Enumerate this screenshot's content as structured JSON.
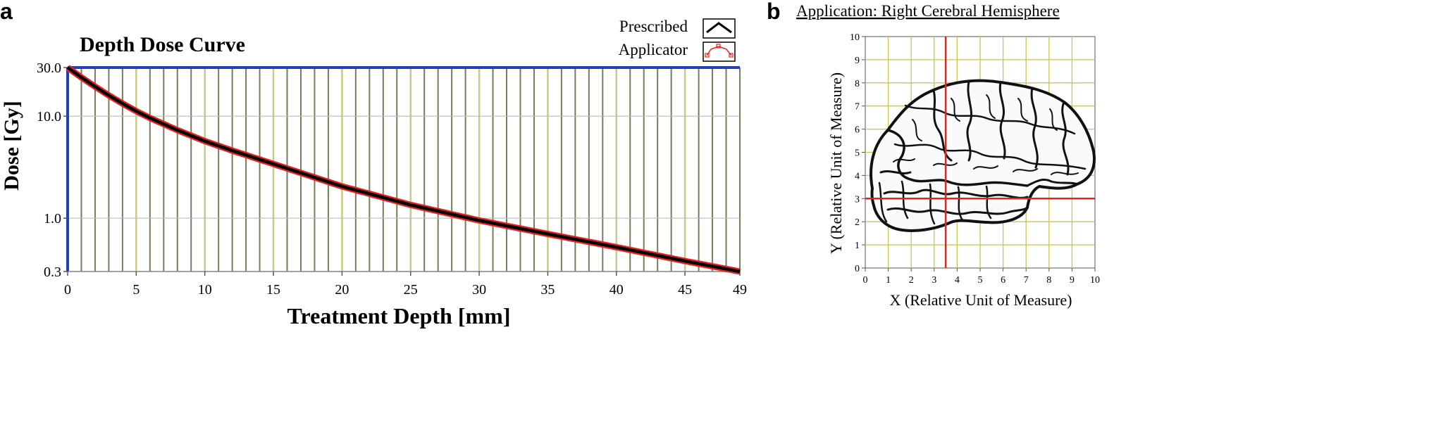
{
  "panel_labels": {
    "a": "a",
    "b": "b"
  },
  "chart_data": [
    {
      "panel": "a",
      "type": "line",
      "title": "Depth Dose Curve",
      "xlabel": "Treatment Depth [mm]",
      "ylabel": "Dose [Gy]",
      "xlim": [
        0,
        49
      ],
      "ylim": [
        0.3,
        30.0
      ],
      "y_scale": "log",
      "x_ticks": [
        "0",
        "5",
        "10",
        "15",
        "20",
        "25",
        "30",
        "35",
        "40",
        "45",
        "49"
      ],
      "y_ticks": [
        "0.3",
        "1.0",
        "10.0",
        "30.0"
      ],
      "grid": true,
      "legend": {
        "position": "top-right",
        "entries": [
          {
            "label": "Prescribed",
            "color": "#000000"
          },
          {
            "label": "Applicator",
            "color": "#e8231c"
          }
        ]
      },
      "series": [
        {
          "name": "Prescribed",
          "color": "#000000",
          "x": [
            0,
            1,
            2,
            3,
            4,
            5,
            6,
            8,
            10,
            12,
            15,
            20,
            25,
            30,
            35,
            40,
            45,
            49
          ],
          "y": [
            30.0,
            24.0,
            19.5,
            16.0,
            13.3,
            11.2,
            9.6,
            7.3,
            5.7,
            4.6,
            3.4,
            2.05,
            1.35,
            0.95,
            0.7,
            0.52,
            0.38,
            0.3
          ]
        },
        {
          "name": "Applicator",
          "color": "#e8231c",
          "x": [
            0,
            1,
            2,
            3,
            4,
            5,
            6,
            8,
            10,
            12,
            15,
            20,
            25,
            30,
            35,
            40,
            45,
            49
          ],
          "y": [
            30.0,
            24.0,
            19.5,
            16.0,
            13.3,
            11.2,
            9.6,
            7.3,
            5.7,
            4.6,
            3.4,
            2.05,
            1.35,
            0.95,
            0.7,
            0.52,
            0.38,
            0.3
          ]
        }
      ],
      "colors": {
        "axis": "#1f3fbf",
        "grid_dark": "#7a7a5c",
        "grid_light": "#c9c98a"
      }
    },
    {
      "panel": "b",
      "type": "scatter",
      "title": "Application: Right Cerebral Hemisphere",
      "xlabel": "X (Relative  Unit  of Measure)",
      "ylabel": "Y (Relative  Unit  of Measure)",
      "xlim": [
        0,
        10
      ],
      "ylim": [
        0,
        10
      ],
      "x_ticks": [
        "0",
        "1",
        "2",
        "3",
        "4",
        "5",
        "6",
        "7",
        "8",
        "9",
        "10"
      ],
      "y_ticks": [
        "0",
        "1",
        "2",
        "3",
        "4",
        "5",
        "6",
        "7",
        "8",
        "9",
        "10"
      ],
      "grid": true,
      "crosshair": {
        "x": 3.5,
        "y": 3.0,
        "color": "#e8231c"
      },
      "background_image": "brain-illustration",
      "colors": {
        "grid": "#c8c45a",
        "axis": "#555555"
      }
    }
  ]
}
